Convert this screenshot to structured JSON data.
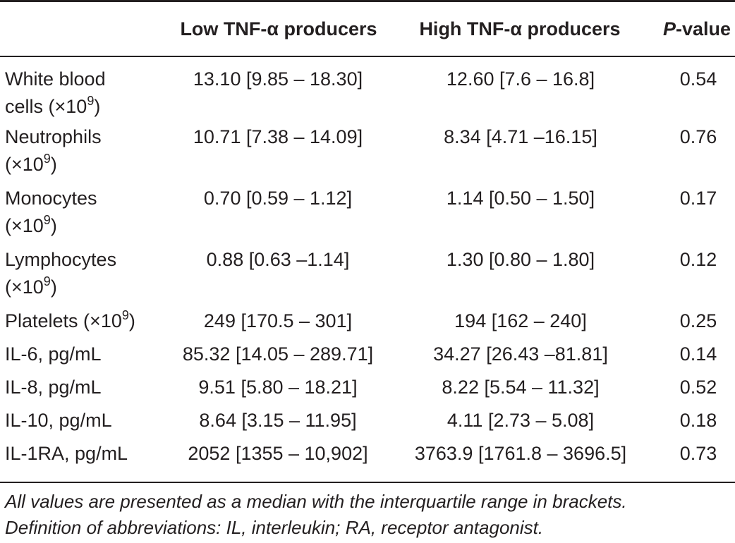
{
  "table": {
    "headers": [
      "",
      "Low TNF-α producers",
      "High TNF-α producers",
      "P-value"
    ],
    "header_p_prefix": "P",
    "header_p_suffix": "-value",
    "rows": [
      {
        "name_line1": "White blood",
        "name_line2": "cells (×10",
        "sup": "9",
        "name_tail": ")",
        "low": "13.10 [9.85 – 18.30]",
        "high": "12.60 [7.6 – 16.8]",
        "p": "0.54"
      },
      {
        "name_line1": "Neutrophils",
        "name_line2": "(×10",
        "sup": "9",
        "name_tail": ")",
        "low": "10.71 [7.38 – 14.09]",
        "high": "8.34 [4.71 –16.15]",
        "p": "0.76"
      },
      {
        "name_line1": "Monocytes",
        "name_line2": "(×10",
        "sup": "9",
        "name_tail": ")",
        "low": "0.70 [0.59 – 1.12]",
        "high": "1.14 [0.50 – 1.50]",
        "p": "0.17"
      },
      {
        "name_line1": "Lymphocytes",
        "name_line2": "(×10",
        "sup": "9",
        "name_tail": ")",
        "low": "0.88 [0.63 –1.14]",
        "high": "1.30 [0.80 – 1.80]",
        "p": "0.12"
      },
      {
        "name_line1": "Platelets (×10",
        "sup": "9",
        "name_tail": ")",
        "low": "249 [170.5 – 301]",
        "high": "194 [162 – 240]",
        "p": "0.25"
      },
      {
        "name_line1": "IL-6, pg/mL",
        "low": "85.32 [14.05 – 289.71]",
        "high": "34.27 [26.43 –81.81]",
        "p": "0.14"
      },
      {
        "name_line1": "IL-8, pg/mL",
        "low": "9.51 [5.80 – 18.21]",
        "high": "8.22 [5.54 – 11.32]",
        "p": "0.52"
      },
      {
        "name_line1": "IL-10, pg/mL",
        "low": "8.64 [3.15 – 11.95]",
        "high": "4.11 [2.73 – 5.08]",
        "p": "0.18"
      },
      {
        "name_line1": "IL-1RA, pg/mL",
        "low": "2052 [1355 – 10,902]",
        "high": "3763.9 [1761.8 – 3696.5]",
        "p": "0.73"
      }
    ]
  },
  "footnote": {
    "line1": "All values are presented as a median with the interquartile range in brackets.",
    "line2": "Definition of abbreviations: IL, interleukin; RA, receptor antagonist."
  }
}
